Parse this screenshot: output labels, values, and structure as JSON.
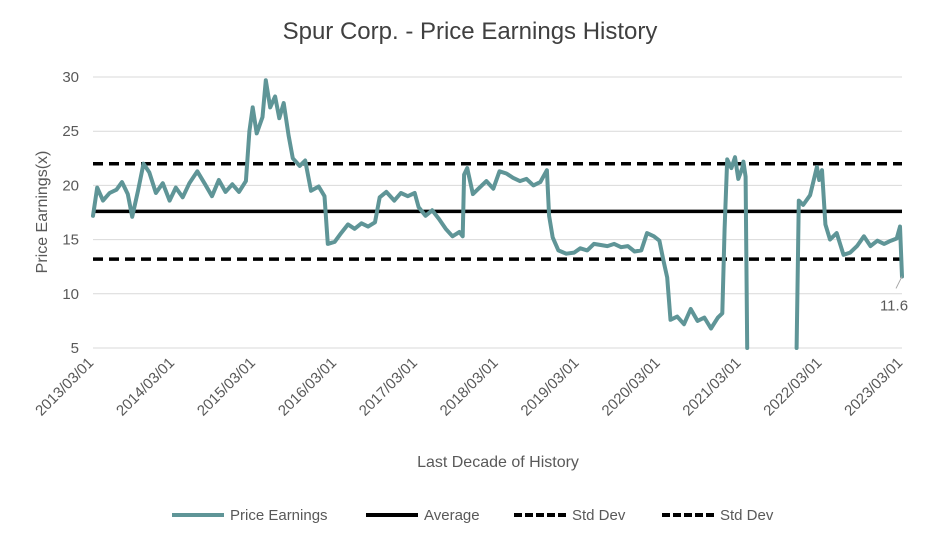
{
  "chart_data": {
    "type": "line",
    "title": "Spur Corp. - Price Earnings History",
    "xlabel": "Last Decade of History",
    "ylabel": "Price Earnings(x)",
    "ylim": [
      5,
      30
    ],
    "yticks": [
      5,
      10,
      15,
      20,
      25,
      30
    ],
    "xticks": [
      "2013/03/01",
      "2014/03/01",
      "2015/03/01",
      "2016/03/01",
      "2017/03/01",
      "2018/03/01",
      "2019/03/01",
      "2020/03/01",
      "2021/03/01",
      "2022/03/01",
      "2023/03/01"
    ],
    "x_start": "2013/03/01",
    "x_end": "2023/03/01",
    "grid": true,
    "legend_position": "bottom",
    "series": [
      {
        "name": "Price Earnings",
        "color": "#5f9597",
        "style": "solid",
        "points": [
          [
            "2013/03/01",
            17.2
          ],
          [
            "2013/03/20",
            19.8
          ],
          [
            "2013/04/15",
            18.6
          ],
          [
            "2013/05/15",
            19.3
          ],
          [
            "2013/06/15",
            19.6
          ],
          [
            "2013/07/10",
            20.3
          ],
          [
            "2013/08/05",
            19.2
          ],
          [
            "2013/08/25",
            17.1
          ],
          [
            "2013/09/20",
            19.5
          ],
          [
            "2013/10/15",
            22.0
          ],
          [
            "2013/11/10",
            21.2
          ],
          [
            "2013/12/10",
            19.3
          ],
          [
            "2014/01/10",
            20.2
          ],
          [
            "2014/02/10",
            18.6
          ],
          [
            "2014/03/10",
            19.8
          ],
          [
            "2014/04/10",
            18.9
          ],
          [
            "2014/05/10",
            20.2
          ],
          [
            "2014/06/15",
            21.3
          ],
          [
            "2014/07/20",
            20.1
          ],
          [
            "2014/08/20",
            19.0
          ],
          [
            "2014/09/20",
            20.5
          ],
          [
            "2014/10/20",
            19.4
          ],
          [
            "2014/11/20",
            20.1
          ],
          [
            "2014/12/20",
            19.4
          ],
          [
            "2015/01/20",
            20.4
          ],
          [
            "2015/02/05",
            25.0
          ],
          [
            "2015/02/20",
            27.2
          ],
          [
            "2015/03/10",
            24.8
          ],
          [
            "2015/04/05",
            26.3
          ],
          [
            "2015/04/20",
            29.7
          ],
          [
            "2015/05/10",
            27.2
          ],
          [
            "2015/06/01",
            28.2
          ],
          [
            "2015/06/20",
            26.2
          ],
          [
            "2015/07/10",
            27.6
          ],
          [
            "2015/08/01",
            24.6
          ],
          [
            "2015/08/20",
            22.5
          ],
          [
            "2015/09/20",
            21.8
          ],
          [
            "2015/10/15",
            22.3
          ],
          [
            "2015/11/10",
            19.5
          ],
          [
            "2015/12/15",
            19.9
          ],
          [
            "2016/01/10",
            19.0
          ],
          [
            "2016/01/25",
            14.6
          ],
          [
            "2016/02/25",
            14.8
          ],
          [
            "2016/03/25",
            15.6
          ],
          [
            "2016/04/25",
            16.4
          ],
          [
            "2016/05/25",
            16.0
          ],
          [
            "2016/06/25",
            16.5
          ],
          [
            "2016/07/25",
            16.2
          ],
          [
            "2016/08/25",
            16.6
          ],
          [
            "2016/09/15",
            18.9
          ],
          [
            "2016/10/15",
            19.4
          ],
          [
            "2016/11/20",
            18.6
          ],
          [
            "2016/12/20",
            19.3
          ],
          [
            "2017/01/20",
            19.0
          ],
          [
            "2017/02/20",
            19.3
          ],
          [
            "2017/03/10",
            18.0
          ],
          [
            "2017/04/10",
            17.2
          ],
          [
            "2017/05/10",
            17.7
          ],
          [
            "2017/06/10",
            16.9
          ],
          [
            "2017/07/10",
            16.0
          ],
          [
            "2017/08/10",
            15.3
          ],
          [
            "2017/09/10",
            15.7
          ],
          [
            "2017/09/25",
            15.3
          ],
          [
            "2017/10/01",
            21.0
          ],
          [
            "2017/10/15",
            21.6
          ],
          [
            "2017/11/10",
            19.2
          ],
          [
            "2017/12/10",
            19.8
          ],
          [
            "2018/01/10",
            20.4
          ],
          [
            "2018/02/10",
            19.7
          ],
          [
            "2018/03/10",
            21.3
          ],
          [
            "2018/04/10",
            21.1
          ],
          [
            "2018/05/10",
            20.7
          ],
          [
            "2018/06/10",
            20.4
          ],
          [
            "2018/07/10",
            20.6
          ],
          [
            "2018/08/10",
            20.0
          ],
          [
            "2018/09/10",
            20.3
          ],
          [
            "2018/10/10",
            21.4
          ],
          [
            "2018/10/20",
            17.2
          ],
          [
            "2018/11/05",
            15.2
          ],
          [
            "2018/12/01",
            14.0
          ],
          [
            "2019/01/05",
            13.7
          ],
          [
            "2019/02/10",
            13.8
          ],
          [
            "2019/03/10",
            14.2
          ],
          [
            "2019/04/10",
            14.0
          ],
          [
            "2019/05/10",
            14.6
          ],
          [
            "2019/06/10",
            14.5
          ],
          [
            "2019/07/10",
            14.4
          ],
          [
            "2019/08/10",
            14.6
          ],
          [
            "2019/09/10",
            14.3
          ],
          [
            "2019/10/10",
            14.4
          ],
          [
            "2019/11/10",
            13.9
          ],
          [
            "2019/12/10",
            14.0
          ],
          [
            "2020/01/05",
            15.6
          ],
          [
            "2020/02/05",
            15.3
          ],
          [
            "2020/03/01",
            14.9
          ],
          [
            "2020/03/20",
            13.0
          ],
          [
            "2020/04/05",
            11.5
          ],
          [
            "2020/04/20",
            7.6
          ],
          [
            "2020/05/20",
            7.9
          ],
          [
            "2020/06/20",
            7.2
          ],
          [
            "2020/07/20",
            8.6
          ],
          [
            "2020/08/20",
            7.5
          ],
          [
            "2020/09/20",
            7.8
          ],
          [
            "2020/10/20",
            6.8
          ],
          [
            "2020/11/20",
            7.8
          ],
          [
            "2020/12/10",
            8.2
          ],
          [
            "2020/12/20",
            16.0
          ],
          [
            "2021/01/01",
            22.4
          ],
          [
            "2021/01/20",
            21.6
          ],
          [
            "2021/02/05",
            22.6
          ],
          [
            "2021/02/20",
            20.6
          ],
          [
            "2021/03/10",
            21.6
          ],
          [
            "2021/03/15",
            22.2
          ],
          [
            "2021/03/25",
            20.8
          ],
          [
            "2021/04/01",
            5.0
          ]
        ],
        "points_2": [
          [
            "2021/11/10",
            5.0
          ],
          [
            "2021/11/20",
            18.6
          ],
          [
            "2021/12/10",
            18.2
          ],
          [
            "2022/01/10",
            19.1
          ],
          [
            "2022/02/10",
            21.7
          ],
          [
            "2022/02/20",
            20.5
          ],
          [
            "2022/03/05",
            21.4
          ],
          [
            "2022/03/20",
            16.4
          ],
          [
            "2022/04/10",
            15.0
          ],
          [
            "2022/05/10",
            15.6
          ],
          [
            "2022/06/10",
            13.6
          ],
          [
            "2022/07/10",
            13.8
          ],
          [
            "2022/08/10",
            14.4
          ],
          [
            "2022/09/10",
            15.3
          ],
          [
            "2022/10/10",
            14.4
          ],
          [
            "2022/11/10",
            14.9
          ],
          [
            "2022/12/10",
            14.6
          ],
          [
            "2023/01/10",
            14.9
          ],
          [
            "2023/02/05",
            15.1
          ],
          [
            "2023/02/20",
            16.2
          ],
          [
            "2023/03/01",
            11.6
          ]
        ],
        "last_value_label": "11.6"
      },
      {
        "name": "Average",
        "color": "#000000",
        "style": "solid",
        "value": 17.6
      },
      {
        "name": "Std Dev",
        "color": "#000000",
        "style": "dashed",
        "value": 22.0
      },
      {
        "name": "Std Dev",
        "color": "#000000",
        "style": "dashed",
        "value": 13.2
      }
    ]
  }
}
